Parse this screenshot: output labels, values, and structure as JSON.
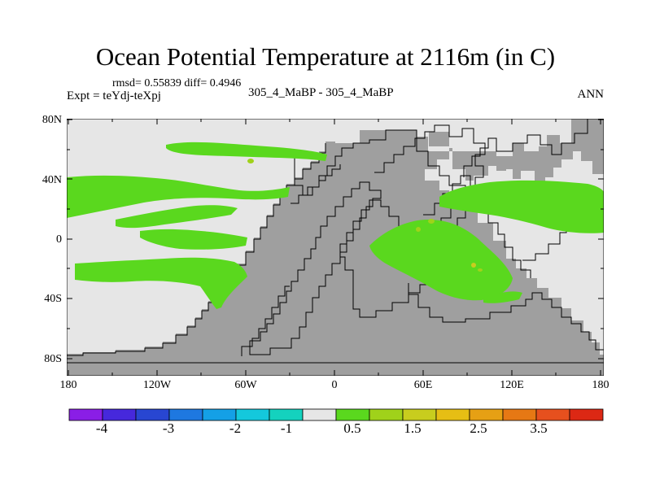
{
  "title": "Ocean Potential Temperature at 2116m (in C)",
  "stats": "rmsd= 0.55839 diff= 0.4946",
  "expt": "Expt = teYdj-teXpj",
  "case": "305_4_MaBP - 305_4_MaBP",
  "season": "ANN",
  "lat_labels": [
    "80N",
    "40N",
    "0",
    "40S",
    "80S"
  ],
  "lon_labels": [
    "180",
    "120W",
    "60W",
    "0",
    "60E",
    "120E",
    "180"
  ],
  "colors": {
    "ocean_near_zero": "#e6e6e6",
    "land": "#9f9f9f",
    "anomaly_0_5_to_1": "#5ad81e",
    "anomaly_1_to_1_5": "#a0d21a",
    "anomaly_1_5_to_2": "#c8cd1e",
    "coastline": "#000000"
  },
  "colorbar": {
    "colors": [
      "#8a1ee6",
      "#4628dc",
      "#2846d2",
      "#1e78e0",
      "#14a0e6",
      "#14c8dc",
      "#14d2be",
      "#e6e6e6",
      "#5ad81e",
      "#a0d21a",
      "#c8cd1e",
      "#e6be14",
      "#e6a014",
      "#e67814",
      "#e6501e",
      "#dc2814"
    ],
    "labels": [
      "-4",
      "-3",
      "-2",
      "-1",
      "0.5",
      "1.5",
      "2.5",
      "3.5"
    ]
  }
}
